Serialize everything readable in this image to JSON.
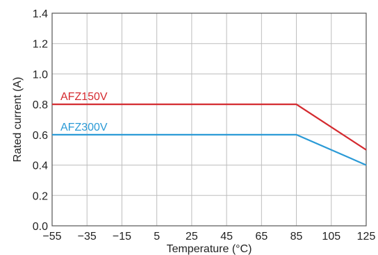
{
  "chart_data": {
    "type": "line",
    "xlabel": "Temperature (°C)",
    "ylabel": "Rated current (A)",
    "x_ticks": [
      "−55",
      "−35",
      "−15",
      "5",
      "25",
      "45",
      "65",
      "85",
      "105",
      "125"
    ],
    "y_ticks": [
      "0.0",
      "0.2",
      "0.4",
      "0.6",
      "0.8",
      "1.0",
      "1.2",
      "1.4"
    ],
    "xlim": [
      -55,
      125
    ],
    "ylim": [
      0,
      1.4
    ],
    "grid": true,
    "series": [
      {
        "name": "AFZ150V",
        "color": "#d42a2f",
        "x": [
          -55,
          85,
          125
        ],
        "y": [
          0.8,
          0.8,
          0.5
        ]
      },
      {
        "name": "AFZ300V",
        "color": "#2a9ad6",
        "x": [
          -55,
          85,
          125
        ],
        "y": [
          0.6,
          0.6,
          0.4
        ]
      }
    ]
  }
}
